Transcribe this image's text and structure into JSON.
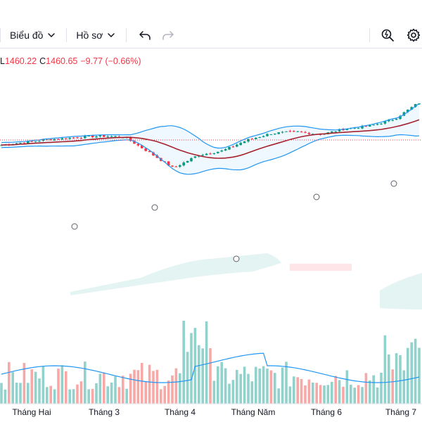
{
  "toolbar": {
    "chart_label": "Biểu đồ",
    "profile_label": "Hồ sơ",
    "icons": [
      "chevron-down-icon",
      "undo-icon",
      "redo-icon",
      "quick-search-icon",
      "settings-gear-icon"
    ]
  },
  "legend": {
    "low_label": "L",
    "low_value": "1460.22",
    "close_label": "C",
    "close_value": "1460.65",
    "change": "−9.77 (−0.66%)"
  },
  "colors": {
    "up": "#089981",
    "down": "#f23645",
    "ma": "#a5222e",
    "band": "#2196f3",
    "cloud": "#b2dfdb",
    "cloud_red": "#f7525f"
  },
  "chart_data": {
    "type": "candlestick",
    "x_tick_labels": [
      "Tháng Hai",
      "Tháng 3",
      "Tháng 4",
      "Tháng Năm",
      "Tháng 6",
      "Tháng 7"
    ],
    "ohlc_anchor_closes": [
      1262,
      1276,
      1289,
      1298,
      1305,
      1301,
      1228,
      1152,
      1214,
      1235,
      1286,
      1318,
      1326,
      1313,
      1340,
      1353,
      1386,
      1466
    ],
    "volume_note": "volume histogram with moving average line",
    "indicators": [
      "Bollinger Bands (20)",
      "Moving average",
      "Ichimoku cloud"
    ],
    "last_close": 1460.65
  }
}
